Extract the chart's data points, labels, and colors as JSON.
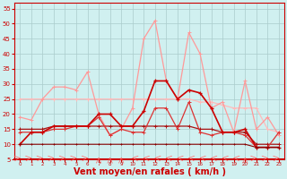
{
  "xlabel": "Vent moyen/en rafales ( km/h )",
  "hours": [
    0,
    1,
    2,
    3,
    4,
    5,
    6,
    7,
    8,
    9,
    10,
    11,
    12,
    13,
    14,
    15,
    16,
    17,
    18,
    19,
    20,
    21,
    22,
    23
  ],
  "line_rafales_light": [
    19,
    18,
    25,
    29,
    29,
    28,
    34,
    20,
    13,
    15,
    22,
    45,
    51,
    31,
    25,
    47,
    40,
    22,
    24,
    14,
    31,
    15,
    19,
    13
  ],
  "line_moy_dark": [
    10,
    14,
    14,
    16,
    16,
    16,
    16,
    20,
    20,
    16,
    16,
    21,
    31,
    31,
    25,
    28,
    27,
    22,
    14,
    14,
    15,
    9,
    9,
    9
  ],
  "line_moy2": [
    14,
    14,
    14,
    15,
    15,
    16,
    16,
    19,
    13,
    15,
    14,
    14,
    22,
    22,
    15,
    24,
    14,
    13,
    14,
    14,
    13,
    9,
    9,
    14
  ],
  "line_flat_light": [
    25,
    25,
    25,
    25,
    25,
    25,
    25,
    25,
    25,
    25,
    25,
    25,
    25,
    25,
    25,
    25,
    24,
    24,
    23,
    22,
    22,
    22,
    15,
    14
  ],
  "line_flat_dark": [
    15,
    15,
    15,
    16,
    16,
    16,
    16,
    16,
    16,
    16,
    16,
    16,
    16,
    16,
    16,
    16,
    15,
    15,
    14,
    14,
    14,
    10,
    10,
    10
  ],
  "line_bottom": [
    10,
    10,
    10,
    10,
    10,
    10,
    10,
    10,
    10,
    10,
    10,
    10,
    10,
    10,
    10,
    10,
    10,
    10,
    10,
    10,
    10,
    9,
    9,
    9
  ],
  "color_light_pink": "#ff9999",
  "color_dark_red": "#cc0000",
  "color_med_red": "#dd3333",
  "color_pale_pink": "#ffbbbb",
  "color_flat_dark": "#aa1111",
  "color_bottom": "#880000",
  "bg_color": "#d0f0f0",
  "grid_color": "#aacccc",
  "ylim": [
    5,
    57
  ],
  "yticks": [
    5,
    10,
    15,
    20,
    25,
    30,
    35,
    40,
    45,
    50,
    55
  ],
  "arrow_angles": [
    45,
    45,
    45,
    45,
    45,
    45,
    45,
    0,
    0,
    0,
    315,
    315,
    315,
    315,
    315,
    315,
    315,
    315,
    315,
    315,
    0,
    45,
    45,
    45
  ],
  "xlabel_color": "#cc0000",
  "axis_red": "#cc0000"
}
